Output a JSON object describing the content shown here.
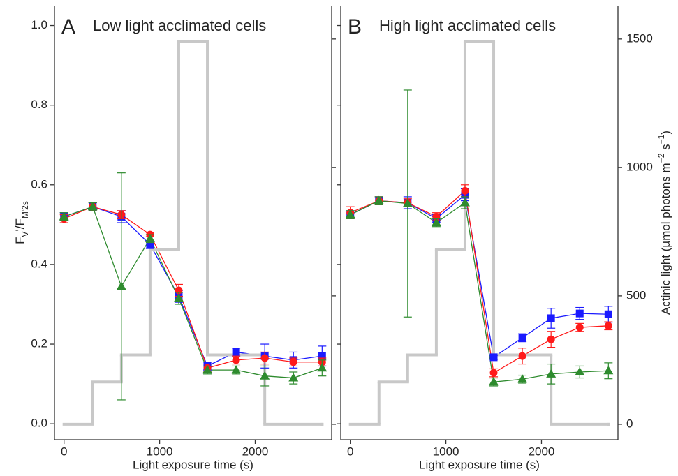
{
  "chart_data": [
    {
      "type": "line",
      "label": "A",
      "title": "Low light acclimated cells",
      "xlabel": "Light exposure time (s)",
      "ylabel": [
        {
          "text": "F"
        },
        {
          "text": "V",
          "sub": true
        },
        {
          "text": "'/F"
        },
        {
          "text": "M'2s",
          "sub": true
        }
      ],
      "xlim": [
        -100,
        2800
      ],
      "xticks": [
        0,
        1000,
        2000
      ],
      "ylim": [
        -0.04,
        1.05
      ],
      "yticks": [
        {
          "value": 0,
          "label": "0.0"
        },
        0.2,
        0.4,
        0.6,
        0.8,
        {
          "value": 1,
          "label": "1.0"
        }
      ],
      "y2lim": [
        -60,
        1630
      ],
      "y2ticks": [
        0,
        500,
        1000,
        1500
      ],
      "show_yticklabels": true,
      "show_y2ticklabels": false,
      "x": [
        0,
        300,
        600,
        900,
        1200,
        1500,
        1800,
        2100,
        2400,
        2700
      ],
      "series": [
        {
          "color": "#1a1aff",
          "marker": "square",
          "values": [
            0.52,
            0.545,
            0.52,
            0.45,
            0.32,
            0.145,
            0.18,
            0.17,
            0.16,
            0.17
          ],
          "errors": [
            0.01,
            0.01,
            0.015,
            0.01,
            0.015,
            0.01,
            0.01,
            0.03,
            0.02,
            0.025
          ]
        },
        {
          "color": "#ff1a1a",
          "marker": "circle",
          "values": [
            0.515,
            0.545,
            0.525,
            0.475,
            0.335,
            0.14,
            0.16,
            0.165,
            0.155,
            0.155
          ],
          "errors": [
            0.01,
            0.01,
            0.01,
            0.005,
            0.015,
            0.01,
            0.01,
            0.015,
            0.01,
            0.01
          ]
        },
        {
          "color": "#2e8b2e",
          "marker": "triangle",
          "values": [
            0.52,
            0.545,
            0.345,
            0.465,
            0.315,
            0.135,
            0.135,
            0.12,
            0.115,
            0.14
          ],
          "errors": [
            0.01,
            0.01,
            0.285,
            0.01,
            0.015,
            0.01,
            0.01,
            0.025,
            0.015,
            0.02
          ]
        },
        {
          "color": "#c8c8c8",
          "axis": "y2",
          "step": true,
          "x": [
            0,
            300,
            600,
            900,
            1200,
            1500,
            2100,
            2700
          ],
          "values": [
            0,
            165,
            270,
            680,
            1490,
            270,
            0,
            0
          ]
        }
      ]
    },
    {
      "type": "line",
      "label": "B",
      "title": "High light acclimated cells",
      "xlabel": "Light exposure time (s)",
      "y2label": [
        {
          "text": "Actinic light (µmol photons m"
        },
        {
          "text": "−2",
          "sup": true
        },
        {
          "text": " s"
        },
        {
          "text": "−1",
          "sup": true
        },
        {
          "text": ")"
        }
      ],
      "xlim": [
        -100,
        2800
      ],
      "xticks": [
        0,
        1000,
        2000
      ],
      "ylim": [
        -0.04,
        1.05
      ],
      "yticks": [
        {
          "value": 0,
          "label": "0.0"
        },
        0.2,
        0.4,
        0.6,
        0.8,
        {
          "value": 1,
          "label": "1.0"
        }
      ],
      "y2lim": [
        -60,
        1630
      ],
      "y2ticks": [
        0,
        500,
        1000,
        1500
      ],
      "show_yticklabels": false,
      "show_y2ticklabels": true,
      "x": [
        0,
        300,
        600,
        900,
        1200,
        1500,
        1800,
        2100,
        2400,
        2700
      ],
      "series": [
        {
          "color": "#1a1aff",
          "marker": "square",
          "values": [
            0.525,
            0.56,
            0.555,
            0.515,
            0.575,
            0.167,
            0.216,
            0.265,
            0.277,
            0.275
          ],
          "errors": [
            0.01,
            0.01,
            0.015,
            0.01,
            0.015,
            0.005,
            0.01,
            0.025,
            0.015,
            0.02
          ]
        },
        {
          "color": "#ff1a1a",
          "marker": "circle",
          "values": [
            0.53,
            0.56,
            0.555,
            0.52,
            0.585,
            0.128,
            0.17,
            0.212,
            0.242,
            0.246
          ],
          "errors": [
            0.015,
            0.01,
            0.01,
            0.01,
            0.015,
            0.01,
            0.02,
            0.02,
            0.01,
            0.01
          ]
        },
        {
          "color": "#2e8b2e",
          "marker": "triangle",
          "values": [
            0.525,
            0.56,
            0.553,
            0.505,
            0.555,
            0.105,
            0.112,
            0.125,
            0.13,
            0.133
          ],
          "errors": [
            0.01,
            0.01,
            0.285,
            0.01,
            0.015,
            0.01,
            0.01,
            0.025,
            0.015,
            0.02
          ]
        },
        {
          "color": "#c8c8c8",
          "axis": "y2",
          "step": true,
          "x": [
            0,
            300,
            600,
            900,
            1200,
            1500,
            2100,
            2700
          ],
          "values": [
            0,
            165,
            270,
            680,
            1490,
            270,
            0,
            0
          ]
        }
      ]
    }
  ]
}
